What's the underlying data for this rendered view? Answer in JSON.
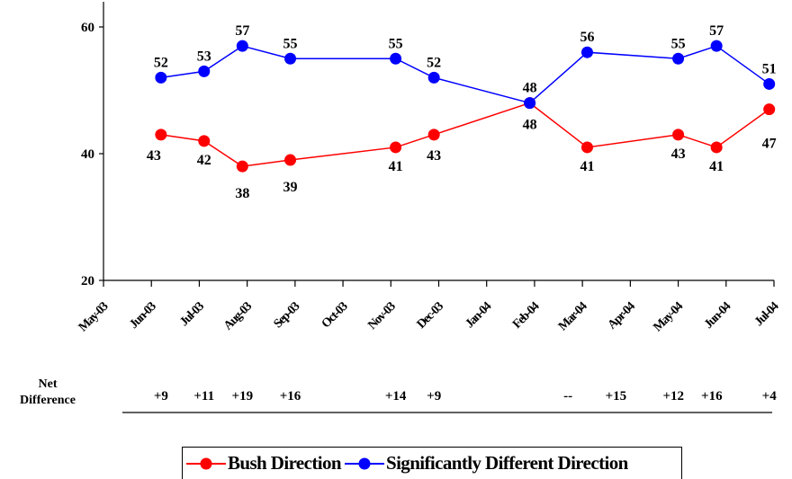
{
  "chart_data": {
    "type": "line",
    "categories": [
      "May-03",
      "Jun-03",
      "Jul-03",
      "Aug-03",
      "Sep-03",
      "Oct-03",
      "Nov-03",
      "Dec-03",
      "Jan-04",
      "Feb-04",
      "Mar-04",
      "Apr-04",
      "May-04",
      "Jun-04",
      "Jul-04"
    ],
    "ylim": [
      20,
      60
    ],
    "yticks": [
      20,
      40,
      60
    ],
    "colors": {
      "bush": "#ff0000",
      "different": "#0000ff"
    },
    "series": [
      {
        "name": "Bush Direction",
        "color": "#ff0000",
        "points": [
          {
            "x": "Jun-03",
            "offset": 0.2,
            "value": 43
          },
          {
            "x": "Jul-03",
            "offset": 0.1,
            "value": 42
          },
          {
            "x": "Aug-03",
            "offset": -0.1,
            "value": 38
          },
          {
            "x": "Sep-03",
            "offset": -0.1,
            "value": 39
          },
          {
            "x": "Nov-03",
            "offset": 0.1,
            "value": 41
          },
          {
            "x": "Dec-03",
            "offset": -0.1,
            "value": 43
          },
          {
            "x": "Feb-04",
            "offset": -0.1,
            "value": 48
          },
          {
            "x": "Mar-04",
            "offset": 0.1,
            "value": 41
          },
          {
            "x": "May-04",
            "offset": 0.0,
            "value": 43
          },
          {
            "x": "Jun-04",
            "offset": -0.2,
            "value": 41
          },
          {
            "x": "Jul-04",
            "offset": -0.1,
            "value": 47
          }
        ]
      },
      {
        "name": "Significantly Different Direction",
        "color": "#0000ff",
        "points": [
          {
            "x": "Jun-03",
            "offset": 0.2,
            "value": 52
          },
          {
            "x": "Jul-03",
            "offset": 0.1,
            "value": 53
          },
          {
            "x": "Aug-03",
            "offset": -0.1,
            "value": 57
          },
          {
            "x": "Sep-03",
            "offset": -0.1,
            "value": 55
          },
          {
            "x": "Nov-03",
            "offset": 0.1,
            "value": 55
          },
          {
            "x": "Dec-03",
            "offset": -0.1,
            "value": 52
          },
          {
            "x": "Feb-04",
            "offset": -0.1,
            "value": 48
          },
          {
            "x": "Mar-04",
            "offset": 0.1,
            "value": 56
          },
          {
            "x": "May-04",
            "offset": 0.0,
            "value": 55
          },
          {
            "x": "Jun-04",
            "offset": -0.2,
            "value": 57
          },
          {
            "x": "Jul-04",
            "offset": -0.1,
            "value": 51
          }
        ]
      }
    ],
    "net_difference": {
      "title_line1": "Net",
      "title_line2": "Difference",
      "values": [
        {
          "x": "Jun-03",
          "offset": 0.2,
          "text": "+9"
        },
        {
          "x": "Jul-03",
          "offset": 0.1,
          "text": "+11"
        },
        {
          "x": "Aug-03",
          "offset": -0.1,
          "text": "+19"
        },
        {
          "x": "Sep-03",
          "offset": -0.1,
          "text": "+16"
        },
        {
          "x": "Nov-03",
          "offset": 0.1,
          "text": "+14"
        },
        {
          "x": "Dec-03",
          "offset": -0.1,
          "text": "+9"
        },
        {
          "x": "Mar-04",
          "offset": -0.3,
          "text": "--"
        },
        {
          "x": "Apr-04",
          "offset": -0.3,
          "text": "+15"
        },
        {
          "x": "May-04",
          "offset": -0.1,
          "text": "+12"
        },
        {
          "x": "Jun-04",
          "offset": -0.3,
          "text": "+16"
        },
        {
          "x": "Jul-04",
          "offset": -0.1,
          "text": "+4"
        }
      ]
    },
    "legend": {
      "position": "bottom",
      "items": [
        {
          "label": "Bush Direction",
          "color": "#ff0000"
        },
        {
          "label": "Significantly Different Direction",
          "color": "#0000ff"
        }
      ]
    }
  }
}
